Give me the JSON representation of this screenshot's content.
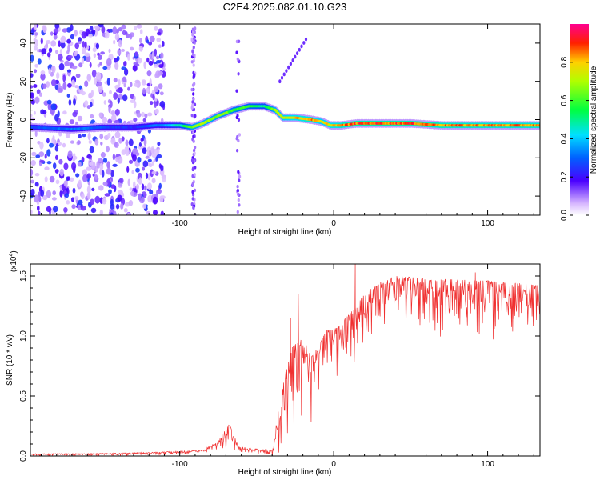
{
  "chart_data": [
    {
      "type": "heatmap",
      "title": "C2E4.2025.082.01.10.G23",
      "xlabel": "Height of straight line (km)",
      "ylabel": "Frequency (Hz)",
      "xlim": [
        -197,
        134
      ],
      "ylim": [
        -50,
        50
      ],
      "x_ticks": [
        -100,
        0,
        100
      ],
      "y_ticks": [
        -40,
        -20,
        0,
        20,
        40
      ],
      "colorbar": {
        "label": "Normalized spectral amplitude",
        "range": [
          0,
          1
        ],
        "ticks": [
          "0.0",
          "0.2",
          "0.4",
          "0.6",
          "0.8"
        ]
      },
      "ridge": {
        "x": [
          -197,
          -170,
          -150,
          -130,
          -115,
          -100,
          -92,
          -85,
          -75,
          -65,
          -55,
          -45,
          -38,
          -33,
          -25,
          -15,
          -8,
          -2,
          5,
          15,
          30,
          50,
          70,
          90,
          110,
          134
        ],
        "freq": [
          -4,
          -5,
          -4,
          -4,
          -3,
          -3,
          -4,
          -2,
          2,
          5,
          7,
          7,
          5,
          1,
          1,
          0,
          -1,
          -3,
          -3,
          -2,
          -2,
          -2,
          -3,
          -3,
          -3,
          -3
        ],
        "amp": [
          0.3,
          0.35,
          0.3,
          0.25,
          0.35,
          0.5,
          0.7,
          0.75,
          0.7,
          0.65,
          0.6,
          0.55,
          0.75,
          0.8,
          0.85,
          0.9,
          0.8,
          0.85,
          0.9,
          0.95,
          0.95,
          0.95,
          0.92,
          0.9,
          0.9,
          0.9
        ]
      },
      "noise_region": [
        -197,
        -110
      ],
      "streak": {
        "x": [
          -35,
          -18
        ],
        "freq": [
          20,
          42
        ]
      }
    },
    {
      "type": "line",
      "xlabel": "Height of straight line (km)",
      "ylabel": "SNR (10 * v/v)",
      "scale_label": "(x10",
      "scale_exp": "4",
      "xlim": [
        -197,
        134
      ],
      "ylim": [
        0,
        1.6
      ],
      "x_ticks": [
        -100,
        0,
        100
      ],
      "y_ticks": [
        "0.0",
        "0.5",
        "1.0",
        "1.5"
      ],
      "envelope": {
        "x": [
          -197,
          -160,
          -120,
          -100,
          -85,
          -75,
          -68,
          -62,
          -50,
          -40,
          -35,
          -28,
          -20,
          -15,
          -10,
          -5,
          0,
          10,
          20,
          30,
          40,
          60,
          80,
          100,
          120,
          134
        ],
        "y": [
          0.02,
          0.02,
          0.03,
          0.04,
          0.05,
          0.12,
          0.28,
          0.08,
          0.06,
          0.05,
          0.45,
          0.9,
          0.98,
          0.85,
          0.9,
          1.05,
          1.05,
          1.18,
          1.35,
          1.45,
          1.5,
          1.48,
          1.47,
          1.46,
          1.44,
          1.42
        ],
        "low": [
          0.0,
          0.0,
          0.0,
          0.01,
          0.02,
          0.03,
          0.04,
          0.02,
          0.01,
          0.0,
          0.02,
          0.05,
          0.05,
          0.2,
          0.4,
          0.55,
          0.6,
          0.7,
          0.9,
          1.0,
          1.05,
          1.0,
          0.95,
          0.95,
          0.95,
          0.92
        ]
      },
      "spikes": [
        {
          "x": -23,
          "y": 1.35
        },
        {
          "x": -28,
          "y": 1.15
        },
        {
          "x": 14,
          "y": 1.6
        },
        {
          "x": 92,
          "y": 1.53
        }
      ],
      "line_color": "#f03030"
    }
  ]
}
